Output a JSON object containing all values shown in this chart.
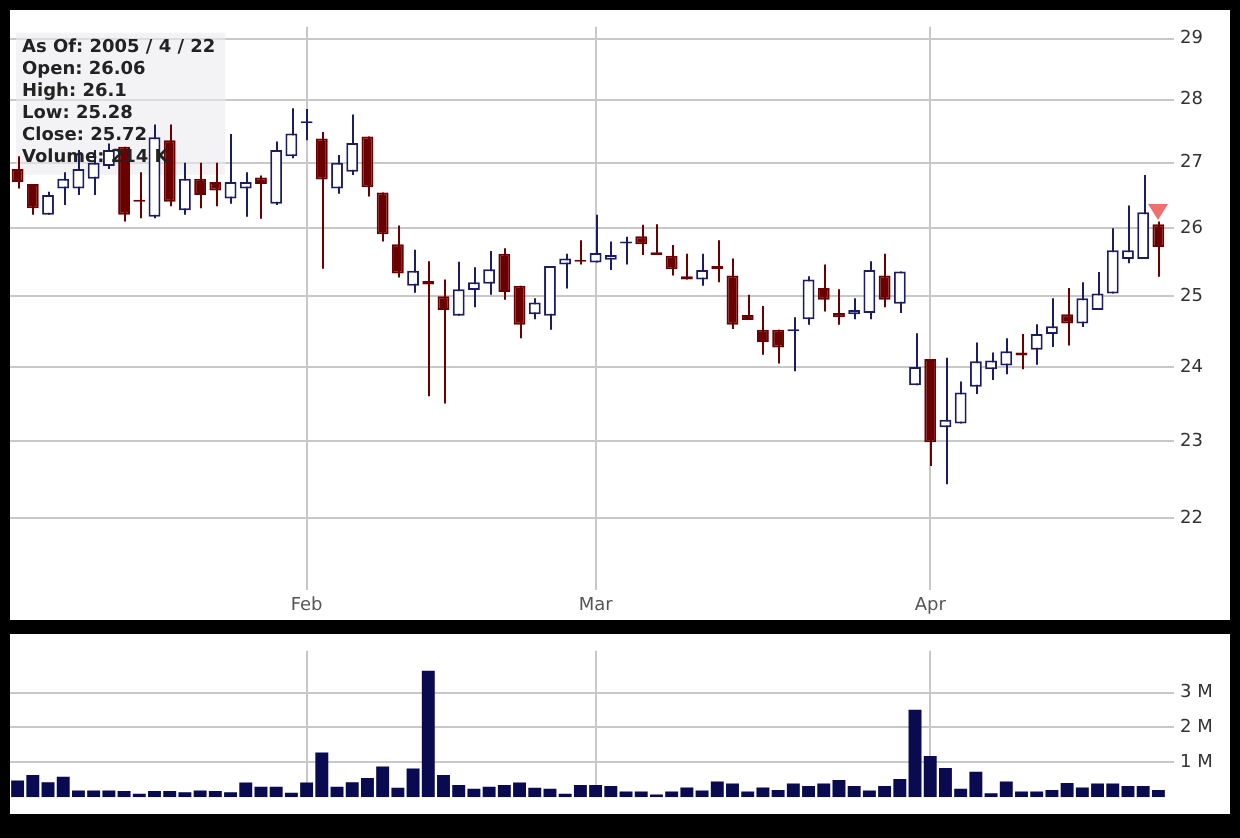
{
  "chart_data": [
    {
      "type": "candlestick",
      "categories": [
        null,
        null,
        null,
        null,
        null,
        null,
        null,
        null,
        null,
        null,
        null,
        null,
        null,
        null,
        null,
        null,
        null,
        null,
        null,
        "Feb",
        null,
        null,
        null,
        null,
        null,
        null,
        null,
        null,
        null,
        null,
        null,
        null,
        null,
        null,
        null,
        null,
        null,
        null,
        "Mar",
        null,
        null,
        null,
        null,
        null,
        null,
        null,
        null,
        null,
        null,
        null,
        null,
        null,
        null,
        null,
        null,
        null,
        null,
        null,
        null,
        null,
        "Apr",
        null,
        null,
        null,
        null,
        null,
        null,
        null,
        null,
        null,
        null,
        null,
        null,
        null,
        null,
        null
      ],
      "ohlc": [
        [
          26.9,
          27.1,
          26.6,
          26.7
        ],
        [
          26.67,
          26.67,
          26.2,
          26.3
        ],
        [
          26.2,
          26.55,
          26.2,
          26.5
        ],
        [
          26.6,
          26.85,
          26.35,
          26.75
        ],
        [
          26.6,
          27.2,
          26.5,
          26.9
        ],
        [
          26.75,
          27.2,
          26.5,
          27.0
        ],
        [
          26.95,
          27.3,
          26.9,
          27.2
        ],
        [
          27.25,
          27.25,
          26.1,
          26.2
        ],
        [
          26.42,
          26.85,
          26.15,
          26.4
        ],
        [
          26.17,
          27.6,
          26.15,
          27.4
        ],
        [
          27.35,
          27.6,
          26.33,
          26.4
        ],
        [
          26.27,
          27.0,
          26.2,
          26.75
        ],
        [
          26.75,
          27.0,
          26.3,
          26.5
        ],
        [
          26.7,
          27.0,
          26.33,
          26.57
        ],
        [
          26.45,
          27.45,
          26.37,
          26.7
        ],
        [
          26.6,
          26.85,
          26.17,
          26.7
        ],
        [
          26.77,
          26.8,
          26.14,
          26.67
        ],
        [
          26.37,
          27.33,
          26.35,
          27.2
        ],
        [
          27.1,
          27.86,
          27.07,
          27.46
        ],
        [
          27.62,
          27.85,
          27.35,
          27.64
        ],
        [
          27.38,
          27.48,
          25.4,
          26.74
        ],
        [
          26.6,
          27.12,
          26.52,
          27.0
        ],
        [
          26.86,
          27.76,
          26.81,
          27.31
        ],
        [
          27.41,
          27.41,
          26.48,
          26.62
        ],
        [
          26.54,
          26.54,
          25.8,
          25.91
        ],
        [
          25.76,
          26.04,
          25.27,
          25.33
        ],
        [
          25.15,
          25.68,
          25.05,
          25.37
        ],
        [
          25.22,
          25.51,
          23.6,
          25.17
        ],
        [
          25.0,
          25.24,
          23.5,
          24.8
        ],
        [
          24.72,
          25.5,
          24.72,
          25.1
        ],
        [
          25.09,
          25.42,
          24.84,
          25.2
        ],
        [
          25.18,
          25.66,
          25.02,
          25.39
        ],
        [
          25.62,
          25.7,
          24.95,
          25.06
        ],
        [
          25.15,
          25.15,
          24.4,
          24.59
        ],
        [
          24.74,
          24.97,
          24.67,
          24.91
        ],
        [
          24.72,
          25.44,
          24.52,
          25.44
        ],
        [
          25.46,
          25.62,
          25.11,
          25.55
        ],
        [
          25.51,
          25.82,
          25.46,
          25.5
        ],
        [
          25.49,
          26.2,
          25.49,
          25.63
        ],
        [
          25.53,
          25.8,
          25.38,
          25.6
        ],
        [
          25.77,
          25.87,
          25.46,
          25.79
        ],
        [
          25.88,
          26.05,
          25.6,
          25.76
        ],
        [
          25.64,
          26.06,
          25.6,
          25.6
        ],
        [
          25.59,
          25.75,
          25.3,
          25.39
        ],
        [
          25.29,
          25.62,
          25.24,
          25.24
        ],
        [
          25.24,
          25.62,
          25.15,
          25.38
        ],
        [
          25.44,
          25.82,
          25.2,
          25.39
        ],
        [
          25.3,
          25.55,
          24.53,
          24.59
        ],
        [
          24.73,
          25.02,
          24.66,
          24.66
        ],
        [
          24.52,
          24.86,
          24.17,
          24.35
        ],
        [
          24.52,
          24.52,
          24.05,
          24.27
        ],
        [
          24.5,
          24.7,
          23.94,
          24.52
        ],
        [
          24.67,
          25.29,
          24.59,
          25.24
        ],
        [
          25.12,
          25.46,
          24.78,
          24.95
        ],
        [
          24.76,
          25.1,
          24.59,
          24.7
        ],
        [
          24.74,
          24.97,
          24.67,
          24.8
        ],
        [
          24.76,
          25.51,
          24.67,
          25.38
        ],
        [
          25.3,
          25.62,
          24.84,
          24.95
        ],
        [
          24.89,
          25.36,
          24.76,
          25.36
        ],
        [
          23.75,
          24.47,
          23.75,
          24.0
        ],
        [
          24.11,
          24.11,
          22.67,
          22.98
        ],
        [
          23.18,
          24.13,
          22.43,
          23.28
        ],
        [
          23.23,
          23.8,
          23.23,
          23.65
        ],
        [
          23.73,
          24.34,
          23.63,
          24.08
        ],
        [
          23.97,
          24.2,
          23.82,
          24.09
        ],
        [
          24.02,
          24.4,
          23.9,
          24.22
        ],
        [
          24.2,
          24.46,
          23.97,
          24.16
        ],
        [
          24.24,
          24.6,
          24.03,
          24.46
        ],
        [
          24.46,
          24.97,
          24.28,
          24.57
        ],
        [
          24.74,
          25.12,
          24.3,
          24.61
        ],
        [
          24.61,
          25.2,
          24.56,
          24.97
        ],
        [
          24.8,
          25.35,
          24.8,
          25.04
        ],
        [
          25.04,
          26.0,
          25.04,
          25.67
        ],
        [
          25.54,
          26.34,
          25.48,
          25.67
        ],
        [
          25.54,
          26.81,
          25.54,
          26.24
        ],
        [
          26.06,
          26.1,
          25.28,
          25.72
        ]
      ],
      "colors": [
        "#6b0000",
        "#6b0000",
        "#1c1c64",
        "#1c1c64",
        "#1c1c64",
        "#1c1c64",
        "#1c1c64",
        "#6b0000",
        "#6b0000",
        "#1c1c64",
        "#6b0000",
        "#1c1c64",
        "#6b0000",
        "#6b0000",
        "#1c1c64",
        "#1c1c64",
        "#6b0000",
        "#1c1c64",
        "#1c1c64",
        "#1c1c64",
        "#6b0000",
        "#1c1c64",
        "#1c1c64",
        "#6b0000",
        "#6b0000",
        "#6b0000",
        "#1c1c64",
        "#6b0000",
        "#6b0000",
        "#1c1c64",
        "#1c1c64",
        "#1c1c64",
        "#6b0000",
        "#6b0000",
        "#1c1c64",
        "#1c1c64",
        "#1c1c64",
        "#6b0000",
        "#1c1c64",
        "#1c1c64",
        "#1c1c64",
        "#6b0000",
        "#6b0000",
        "#6b0000",
        "#6b0000",
        "#1c1c64",
        "#6b0000",
        "#6b0000",
        "#6b0000",
        "#6b0000",
        "#6b0000",
        "#1c1c64",
        "#1c1c64",
        "#6b0000",
        "#6b0000",
        "#1c1c64",
        "#1c1c64",
        "#6b0000",
        "#1c1c64",
        "#1c1c64",
        "#6b0000",
        "#1c1c64",
        "#1c1c64",
        "#1c1c64",
        "#1c1c64",
        "#1c1c64",
        "#6b0000",
        "#1c1c64",
        "#1c1c64",
        "#6b0000",
        "#1c1c64",
        "#1c1c64",
        "#1c1c64",
        "#1c1c64",
        "#1c1c64",
        "#6b0000"
      ],
      "log": true,
      "ylim": [
        21.1,
        29.2
      ],
      "yticks": [
        22,
        23,
        24,
        25,
        26,
        27,
        28,
        29
      ],
      "grid": true,
      "annotations": [
        "As Of: 2005 / 4 / 22",
        "Open: 26.06",
        "High: 26.1",
        "Low: 25.28",
        "Close: 25.72",
        "Volume: 214 K"
      ]
    },
    {
      "type": "bar",
      "categories": [
        null,
        null,
        null,
        null,
        null,
        null,
        null,
        null,
        null,
        null,
        null,
        null,
        null,
        null,
        null,
        null,
        null,
        null,
        null,
        null,
        null,
        null,
        null,
        null,
        null,
        null,
        null,
        null,
        null,
        null,
        null,
        null,
        null,
        null,
        null,
        null,
        null,
        null,
        null,
        null,
        null,
        null,
        null,
        null,
        null,
        null,
        null,
        null,
        null,
        null,
        null,
        null,
        null,
        null,
        null,
        null,
        null,
        null,
        null,
        null,
        null,
        null,
        null,
        null,
        null,
        null,
        null,
        null,
        null,
        null,
        null,
        null,
        null,
        null,
        null,
        null
      ],
      "values": [
        0.48,
        0.64,
        0.43,
        0.59,
        0.19,
        0.19,
        0.19,
        0.18,
        0.1,
        0.18,
        0.18,
        0.14,
        0.19,
        0.18,
        0.14,
        0.42,
        0.3,
        0.3,
        0.13,
        0.42,
        1.28,
        0.3,
        0.43,
        0.55,
        0.88,
        0.27,
        0.82,
        3.63,
        0.64,
        0.35,
        0.24,
        0.3,
        0.35,
        0.42,
        0.27,
        0.24,
        0.1,
        0.35,
        0.35,
        0.32,
        0.16,
        0.16,
        0.08,
        0.16,
        0.28,
        0.19,
        0.45,
        0.39,
        0.16,
        0.28,
        0.21,
        0.39,
        0.32,
        0.39,
        0.49,
        0.32,
        0.19,
        0.32,
        0.52,
        2.51,
        1.18,
        0.84,
        0.24,
        0.73,
        0.11,
        0.45,
        0.16,
        0.16,
        0.21,
        0.41,
        0.28,
        0.39,
        0.39,
        0.32,
        0.32,
        0.21
      ],
      "color": "#0a0a50",
      "ylim": [
        0,
        4.2
      ],
      "yticks": [
        {
          "value": 1,
          "label": "1 M"
        },
        {
          "value": 2,
          "label": "2 M"
        },
        {
          "value": 3,
          "label": "3 M"
        }
      ],
      "grid": true,
      "tick_labels": "y"
    }
  ]
}
